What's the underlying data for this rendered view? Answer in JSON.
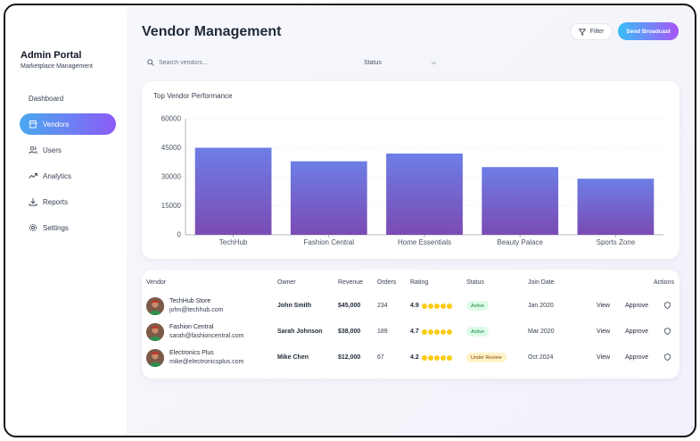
{
  "sidebar": {
    "title": "Admin Portal",
    "subtitle": "Marketplace Management",
    "items": [
      {
        "label": "Dashboard",
        "icon": "none"
      },
      {
        "label": "Vendors",
        "icon": "store-icon",
        "active": true
      },
      {
        "label": "Users",
        "icon": "users-icon"
      },
      {
        "label": "Analytics",
        "icon": "trend-icon"
      },
      {
        "label": "Reports",
        "icon": "download-icon"
      },
      {
        "label": "Settings",
        "icon": "gear-icon"
      }
    ]
  },
  "header": {
    "title": "Vendor Management",
    "filter_label": "Filter",
    "broadcast_label": "Send Broadcast"
  },
  "search": {
    "placeholder": "Search vendors..."
  },
  "status_filter": {
    "label": "Status"
  },
  "chart_title": "Top Vendor Performance",
  "chart_data": {
    "type": "bar",
    "title": "Top Vendor Performance",
    "categories": [
      "TechHub",
      "Fashion Central",
      "Home Essentials",
      "Beauty Palace",
      "Sports Zone"
    ],
    "values": [
      45000,
      38000,
      42000,
      35000,
      29000
    ],
    "yticks": [
      "0",
      "15000",
      "30000",
      "45000",
      "60000"
    ],
    "ylim": [
      0,
      60000
    ],
    "grid": true,
    "bar_gradient": [
      "#6d7ee6",
      "#7a4bb3"
    ]
  },
  "table": {
    "headers": {
      "vendor": "Vendor",
      "owner": "Owner",
      "revenue": "Revenue",
      "orders": "Orders",
      "rating": "Rating",
      "status": "Status",
      "join": "Join Date",
      "actions": "Actions"
    },
    "view_label": "View",
    "approve_label": "Approve",
    "rows": [
      {
        "name": "TechHub Store",
        "email": "john@techhub.com",
        "owner": "John Smith",
        "revenue": "$45,000",
        "orders": "234",
        "rating": "4.9",
        "status": "Active",
        "join": "Jan 2020"
      },
      {
        "name": "Fashion Central",
        "email": "sarah@fashioncentral.com",
        "owner": "Sarah Johnson",
        "revenue": "$38,000",
        "orders": "189",
        "rating": "4.7",
        "status": "Active",
        "join": "Mar 2020"
      },
      {
        "name": "Electronics Plus",
        "email": "mike@electronicsplus.com",
        "owner": "Mike Chen",
        "revenue": "$12,000",
        "orders": "67",
        "rating": "4.2",
        "status": "Under Review",
        "join": "Oct 2024"
      }
    ]
  },
  "colors": {
    "accent_start": "#4aa8f0",
    "accent_end": "#8b5cf6",
    "star": "#facc15"
  }
}
